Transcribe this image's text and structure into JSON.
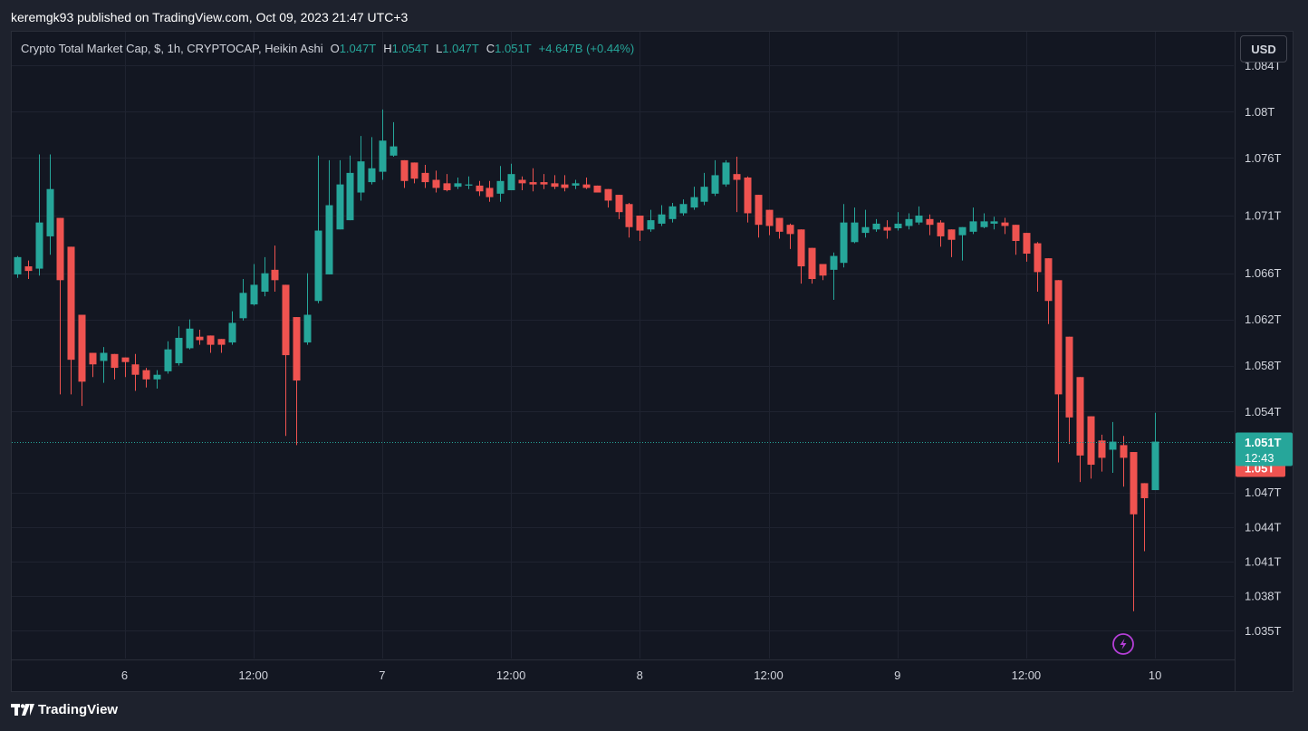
{
  "header": {
    "published_text": "keremgk93 published on TradingView.com, Oct 09, 2023 21:47 UTC+3"
  },
  "legend": {
    "symbol_text": "Crypto Total Market Cap, $, 1h, CRYPTOCAP, Heikin Ashi",
    "open_label": "O",
    "open_value": "1.047T",
    "high_label": "H",
    "high_value": "1.054T",
    "low_label": "L",
    "low_value": "1.047T",
    "close_label": "C",
    "close_value": "1.051T",
    "change_value": "+4.647B (+0.44%)"
  },
  "currency_button": "USD",
  "footer": {
    "brand": "TradingView"
  },
  "colors": {
    "up": "#26a69a",
    "down": "#ef5350",
    "background": "#131722",
    "grid": "#1f2330",
    "text": "#d1d4dc",
    "accent_icon": "#b53fd7"
  },
  "chart_data": {
    "type": "candlestick",
    "style": "Heikin Ashi",
    "y_axis_labels": [
      "1.084T",
      "1.08T",
      "1.076T",
      "1.071T",
      "1.066T",
      "1.062T",
      "1.058T",
      "1.054T",
      "1.047T",
      "1.044T",
      "1.041T",
      "1.038T",
      "1.035T"
    ],
    "y_axis_values": [
      1.084,
      1.08,
      1.076,
      1.071,
      1.066,
      1.062,
      1.058,
      1.054,
      1.047,
      1.044,
      1.041,
      1.038,
      1.035
    ],
    "x_axis_labels": [
      "6",
      "12:00",
      "7",
      "12:00",
      "8",
      "12:00",
      "9",
      "12:00",
      "10"
    ],
    "x_axis_indexes": [
      10,
      22,
      34,
      46,
      58,
      70,
      82,
      94,
      106
    ],
    "last_price_label": "1.051T",
    "last_price_value": 1.0514,
    "countdown_label": "12:43",
    "prev_close_label": "1.05T",
    "candles": [
      {
        "o": 1.0659,
        "h": 1.0675,
        "l": 1.0656,
        "c": 1.0674
      },
      {
        "o": 1.0666,
        "h": 1.0671,
        "l": 1.0655,
        "c": 1.0662
      },
      {
        "o": 1.0664,
        "h": 1.0763,
        "l": 1.0658,
        "c": 1.0704
      },
      {
        "o": 1.0692,
        "h": 1.0763,
        "l": 1.0676,
        "c": 1.0733
      },
      {
        "o": 1.0708,
        "h": 1.0708,
        "l": 1.0555,
        "c": 1.0654
      },
      {
        "o": 1.0683,
        "h": 1.0683,
        "l": 1.0555,
        "c": 1.0585
      },
      {
        "o": 1.0624,
        "h": 1.0624,
        "l": 1.0545,
        "c": 1.0566
      },
      {
        "o": 1.0591,
        "h": 1.0591,
        "l": 1.057,
        "c": 1.0581
      },
      {
        "o": 1.0584,
        "h": 1.0596,
        "l": 1.0565,
        "c": 1.0591
      },
      {
        "o": 1.059,
        "h": 1.059,
        "l": 1.0568,
        "c": 1.0578
      },
      {
        "o": 1.0587,
        "h": 1.0587,
        "l": 1.057,
        "c": 1.0583
      },
      {
        "o": 1.0581,
        "h": 1.059,
        "l": 1.0558,
        "c": 1.0572
      },
      {
        "o": 1.0576,
        "h": 1.0578,
        "l": 1.0561,
        "c": 1.0568
      },
      {
        "o": 1.0568,
        "h": 1.0576,
        "l": 1.056,
        "c": 1.0572
      },
      {
        "o": 1.0575,
        "h": 1.0601,
        "l": 1.0573,
        "c": 1.0594
      },
      {
        "o": 1.0582,
        "h": 1.0614,
        "l": 1.058,
        "c": 1.0604
      },
      {
        "o": 1.0595,
        "h": 1.062,
        "l": 1.0594,
        "c": 1.0612
      },
      {
        "o": 1.0605,
        "h": 1.0611,
        "l": 1.0598,
        "c": 1.0602
      },
      {
        "o": 1.0606,
        "h": 1.0606,
        "l": 1.0591,
        "c": 1.0598
      },
      {
        "o": 1.0603,
        "h": 1.0603,
        "l": 1.0591,
        "c": 1.0598
      },
      {
        "o": 1.06,
        "h": 1.0627,
        "l": 1.0598,
        "c": 1.0617
      },
      {
        "o": 1.0621,
        "h": 1.0655,
        "l": 1.0619,
        "c": 1.0643
      },
      {
        "o": 1.0633,
        "h": 1.0668,
        "l": 1.0632,
        "c": 1.065
      },
      {
        "o": 1.0644,
        "h": 1.0674,
        "l": 1.064,
        "c": 1.066
      },
      {
        "o": 1.0663,
        "h": 1.0684,
        "l": 1.0644,
        "c": 1.0654
      },
      {
        "o": 1.065,
        "h": 1.065,
        "l": 1.0519,
        "c": 1.0589
      },
      {
        "o": 1.0622,
        "h": 1.0622,
        "l": 1.0511,
        "c": 1.0567
      },
      {
        "o": 1.06,
        "h": 1.066,
        "l": 1.0598,
        "c": 1.0624
      },
      {
        "o": 1.0636,
        "h": 1.0762,
        "l": 1.0634,
        "c": 1.0697
      },
      {
        "o": 1.0659,
        "h": 1.0758,
        "l": 1.0659,
        "c": 1.0719
      },
      {
        "o": 1.0698,
        "h": 1.0758,
        "l": 1.0698,
        "c": 1.0737
      },
      {
        "o": 1.0706,
        "h": 1.0762,
        "l": 1.0706,
        "c": 1.0747
      },
      {
        "o": 1.073,
        "h": 1.0779,
        "l": 1.0723,
        "c": 1.0757
      },
      {
        "o": 1.0739,
        "h": 1.0778,
        "l": 1.0737,
        "c": 1.0751
      },
      {
        "o": 1.0748,
        "h": 1.0802,
        "l": 1.0741,
        "c": 1.0775
      },
      {
        "o": 1.0762,
        "h": 1.0791,
        "l": 1.0761,
        "c": 1.077
      },
      {
        "o": 1.0758,
        "h": 1.0758,
        "l": 1.0734,
        "c": 1.074
      },
      {
        "o": 1.0756,
        "h": 1.0756,
        "l": 1.0738,
        "c": 1.0742
      },
      {
        "o": 1.0747,
        "h": 1.0754,
        "l": 1.0734,
        "c": 1.0739
      },
      {
        "o": 1.0741,
        "h": 1.0749,
        "l": 1.073,
        "c": 1.0734
      },
      {
        "o": 1.0738,
        "h": 1.0746,
        "l": 1.0731,
        "c": 1.0732
      },
      {
        "o": 1.0735,
        "h": 1.0743,
        "l": 1.0733,
        "c": 1.0738
      },
      {
        "o": 1.0736,
        "h": 1.0744,
        "l": 1.0733,
        "c": 1.0737
      },
      {
        "o": 1.0736,
        "h": 1.074,
        "l": 1.0727,
        "c": 1.0731
      },
      {
        "o": 1.0734,
        "h": 1.074,
        "l": 1.0722,
        "c": 1.0726
      },
      {
        "o": 1.0729,
        "h": 1.0753,
        "l": 1.0722,
        "c": 1.074
      },
      {
        "o": 1.0732,
        "h": 1.0755,
        "l": 1.0732,
        "c": 1.0746
      },
      {
        "o": 1.0741,
        "h": 1.0744,
        "l": 1.0732,
        "c": 1.0738
      },
      {
        "o": 1.0739,
        "h": 1.0751,
        "l": 1.0731,
        "c": 1.0737
      },
      {
        "o": 1.0739,
        "h": 1.0746,
        "l": 1.0733,
        "c": 1.0737
      },
      {
        "o": 1.0738,
        "h": 1.0745,
        "l": 1.0733,
        "c": 1.0735
      },
      {
        "o": 1.0737,
        "h": 1.0745,
        "l": 1.0731,
        "c": 1.0734
      },
      {
        "o": 1.0736,
        "h": 1.0741,
        "l": 1.0733,
        "c": 1.0738
      },
      {
        "o": 1.0737,
        "h": 1.0743,
        "l": 1.0733,
        "c": 1.0734
      },
      {
        "o": 1.0736,
        "h": 1.0736,
        "l": 1.073,
        "c": 1.073
      },
      {
        "o": 1.0733,
        "h": 1.0733,
        "l": 1.0717,
        "c": 1.0723
      },
      {
        "o": 1.0728,
        "h": 1.0728,
        "l": 1.0707,
        "c": 1.0713
      },
      {
        "o": 1.072,
        "h": 1.0721,
        "l": 1.0691,
        "c": 1.07
      },
      {
        "o": 1.071,
        "h": 1.071,
        "l": 1.0688,
        "c": 1.0697
      },
      {
        "o": 1.0698,
        "h": 1.0715,
        "l": 1.0696,
        "c": 1.0706
      },
      {
        "o": 1.0703,
        "h": 1.0719,
        "l": 1.0701,
        "c": 1.0711
      },
      {
        "o": 1.0707,
        "h": 1.0721,
        "l": 1.0704,
        "c": 1.0718
      },
      {
        "o": 1.0712,
        "h": 1.0724,
        "l": 1.071,
        "c": 1.072
      },
      {
        "o": 1.0717,
        "h": 1.0735,
        "l": 1.0715,
        "c": 1.0726
      },
      {
        "o": 1.0722,
        "h": 1.0747,
        "l": 1.0719,
        "c": 1.0735
      },
      {
        "o": 1.0729,
        "h": 1.0758,
        "l": 1.0727,
        "c": 1.0745
      },
      {
        "o": 1.0737,
        "h": 1.0758,
        "l": 1.0735,
        "c": 1.0756
      },
      {
        "o": 1.0746,
        "h": 1.0761,
        "l": 1.0713,
        "c": 1.0741
      },
      {
        "o": 1.0743,
        "h": 1.0744,
        "l": 1.0704,
        "c": 1.0712
      },
      {
        "o": 1.0728,
        "h": 1.0728,
        "l": 1.0691,
        "c": 1.0702
      },
      {
        "o": 1.0715,
        "h": 1.0715,
        "l": 1.0693,
        "c": 1.0701
      },
      {
        "o": 1.0708,
        "h": 1.0708,
        "l": 1.069,
        "c": 1.0696
      },
      {
        "o": 1.0702,
        "h": 1.0703,
        "l": 1.0681,
        "c": 1.0694
      },
      {
        "o": 1.0698,
        "h": 1.0698,
        "l": 1.0651,
        "c": 1.0666
      },
      {
        "o": 1.0682,
        "h": 1.0682,
        "l": 1.0651,
        "c": 1.0655
      },
      {
        "o": 1.0668,
        "h": 1.0668,
        "l": 1.0654,
        "c": 1.0658
      },
      {
        "o": 1.0663,
        "h": 1.0678,
        "l": 1.0637,
        "c": 1.0675
      },
      {
        "o": 1.0669,
        "h": 1.072,
        "l": 1.0665,
        "c": 1.0704
      },
      {
        "o": 1.0687,
        "h": 1.0717,
        "l": 1.0686,
        "c": 1.0704
      },
      {
        "o": 1.0695,
        "h": 1.0715,
        "l": 1.0691,
        "c": 1.07
      },
      {
        "o": 1.0698,
        "h": 1.0707,
        "l": 1.0696,
        "c": 1.0703
      },
      {
        "o": 1.07,
        "h": 1.0706,
        "l": 1.069,
        "c": 1.0697
      },
      {
        "o": 1.0699,
        "h": 1.0713,
        "l": 1.0697,
        "c": 1.0703
      },
      {
        "o": 1.0701,
        "h": 1.0712,
        "l": 1.0698,
        "c": 1.0707
      },
      {
        "o": 1.0704,
        "h": 1.0718,
        "l": 1.0702,
        "c": 1.071
      },
      {
        "o": 1.0707,
        "h": 1.0711,
        "l": 1.0693,
        "c": 1.0702
      },
      {
        "o": 1.0704,
        "h": 1.0706,
        "l": 1.0683,
        "c": 1.0692
      },
      {
        "o": 1.0698,
        "h": 1.0698,
        "l": 1.0674,
        "c": 1.0689
      },
      {
        "o": 1.0693,
        "h": 1.07,
        "l": 1.0671,
        "c": 1.07
      },
      {
        "o": 1.0696,
        "h": 1.0717,
        "l": 1.0694,
        "c": 1.0705
      },
      {
        "o": 1.07,
        "h": 1.0712,
        "l": 1.0699,
        "c": 1.0705
      },
      {
        "o": 1.0703,
        "h": 1.0709,
        "l": 1.0698,
        "c": 1.0705
      },
      {
        "o": 1.0704,
        "h": 1.0708,
        "l": 1.0694,
        "c": 1.0701
      },
      {
        "o": 1.0702,
        "h": 1.0702,
        "l": 1.0676,
        "c": 1.0688
      },
      {
        "o": 1.0695,
        "h": 1.0695,
        "l": 1.067,
        "c": 1.0677
      },
      {
        "o": 1.0686,
        "h": 1.0687,
        "l": 1.0644,
        "c": 1.0661
      },
      {
        "o": 1.0673,
        "h": 1.0673,
        "l": 1.0616,
        "c": 1.0636
      },
      {
        "o": 1.0654,
        "h": 1.0654,
        "l": 1.0496,
        "c": 1.0555
      },
      {
        "o": 1.0605,
        "h": 1.0605,
        "l": 1.0512,
        "c": 1.0535
      },
      {
        "o": 1.057,
        "h": 1.057,
        "l": 1.0479,
        "c": 1.0502
      },
      {
        "o": 1.0536,
        "h": 1.0536,
        "l": 1.0482,
        "c": 1.0494
      },
      {
        "o": 1.0515,
        "h": 1.052,
        "l": 1.0488,
        "c": 1.05
      },
      {
        "o": 1.0507,
        "h": 1.0531,
        "l": 1.0487,
        "c": 1.0514
      },
      {
        "o": 1.0511,
        "h": 1.0519,
        "l": 1.0475,
        "c": 1.05
      },
      {
        "o": 1.0505,
        "h": 1.0505,
        "l": 1.0367,
        "c": 1.0451
      },
      {
        "o": 1.0478,
        "h": 1.0478,
        "l": 1.0419,
        "c": 1.0465
      },
      {
        "o": 1.0472,
        "h": 1.0539,
        "l": 1.0472,
        "c": 1.0514
      }
    ]
  }
}
